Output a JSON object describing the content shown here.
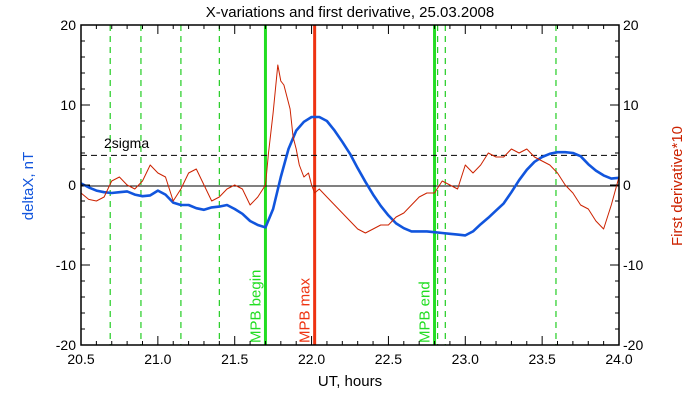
{
  "chart_data": {
    "type": "line",
    "title": "X-variations and first derivative, 25.03.2008",
    "xlabel": "UT, hours",
    "ylabel_left": "deltaX, nT",
    "ylabel_right": "First derivative*10",
    "xlim": [
      20.5,
      24.0
    ],
    "ylim": [
      -20,
      20
    ],
    "x_ticks": [
      "20.5",
      "21.0",
      "21.5",
      "22.0",
      "22.5",
      "23.0",
      "23.5",
      "24.0"
    ],
    "y_ticks_left": [
      "-20",
      "-10",
      "0",
      "10",
      "20"
    ],
    "y_ticks_right": [
      "-20",
      "-10",
      "0",
      "10",
      "20"
    ],
    "grid": false,
    "threshold": {
      "label": "2sigma",
      "value": 3.7
    },
    "colors": {
      "deltaX": "#1155dd",
      "derivative": "#cc2200",
      "mpb": "#22dd22",
      "mpb_max": "#ee3311",
      "dashed_green": "#22cc22",
      "axes": "#000000"
    },
    "dashed_markers": [
      20.69,
      20.89,
      21.15,
      21.4,
      22.82,
      22.87,
      23.59
    ],
    "event_lines": [
      {
        "label": "MPB begin",
        "x": 21.7,
        "color": "#22dd22"
      },
      {
        "label": "MPB max",
        "x": 22.02,
        "color": "#ee3311"
      },
      {
        "label": "MPB end",
        "x": 22.8,
        "color": "#22dd22"
      }
    ],
    "series": [
      {
        "name": "deltaX",
        "axis": "left",
        "color": "#1155dd",
        "x": [
          20.5,
          20.55,
          20.6,
          20.65,
          20.7,
          20.75,
          20.8,
          20.85,
          20.9,
          20.95,
          21.0,
          21.05,
          21.1,
          21.15,
          21.2,
          21.25,
          21.3,
          21.35,
          21.4,
          21.45,
          21.5,
          21.55,
          21.6,
          21.65,
          21.7,
          21.75,
          21.8,
          21.85,
          21.9,
          21.95,
          22.0,
          22.05,
          22.1,
          22.15,
          22.2,
          22.25,
          22.3,
          22.35,
          22.4,
          22.45,
          22.5,
          22.55,
          22.6,
          22.65,
          22.7,
          22.75,
          22.8,
          22.85,
          22.9,
          22.95,
          23.0,
          23.05,
          23.1,
          23.15,
          23.2,
          23.25,
          23.3,
          23.35,
          23.4,
          23.45,
          23.5,
          23.55,
          23.6,
          23.65,
          23.7,
          23.75,
          23.8,
          23.85,
          23.9,
          23.95,
          24.0
        ],
        "y": [
          0.2,
          -0.3,
          -0.7,
          -0.9,
          -1.0,
          -0.9,
          -0.8,
          -1.2,
          -1.4,
          -1.3,
          -0.7,
          -1.2,
          -2.2,
          -2.5,
          -2.5,
          -2.9,
          -3.1,
          -2.8,
          -2.7,
          -2.5,
          -3.0,
          -3.6,
          -4.5,
          -5.0,
          -5.3,
          -3.0,
          1.0,
          4.5,
          6.8,
          7.9,
          8.5,
          8.5,
          8.0,
          6.8,
          5.4,
          3.9,
          2.1,
          0.4,
          -1.2,
          -2.6,
          -3.8,
          -4.8,
          -5.4,
          -5.8,
          -5.8,
          -5.8,
          -5.9,
          -6.0,
          -6.1,
          -6.2,
          -6.3,
          -5.8,
          -4.9,
          -4.1,
          -3.2,
          -2.3,
          -0.9,
          0.6,
          1.9,
          2.9,
          3.5,
          3.9,
          4.1,
          4.1,
          4.0,
          3.6,
          2.6,
          1.8,
          1.2,
          0.8,
          0.9
        ]
      },
      {
        "name": "First derivative*10",
        "axis": "right",
        "color": "#cc2200",
        "x": [
          20.5,
          20.55,
          20.6,
          20.65,
          20.7,
          20.75,
          20.8,
          20.85,
          20.9,
          20.95,
          21.0,
          21.05,
          21.1,
          21.15,
          21.2,
          21.25,
          21.3,
          21.35,
          21.4,
          21.45,
          21.5,
          21.55,
          21.6,
          21.65,
          21.7,
          21.72,
          21.75,
          21.78,
          21.8,
          21.82,
          21.84,
          21.86,
          21.88,
          21.9,
          21.92,
          21.95,
          21.98,
          22.0,
          22.02,
          22.05,
          22.1,
          22.15,
          22.2,
          22.25,
          22.3,
          22.35,
          22.4,
          22.45,
          22.5,
          22.55,
          22.6,
          22.65,
          22.7,
          22.75,
          22.8,
          22.85,
          22.9,
          22.95,
          23.0,
          23.05,
          23.1,
          23.15,
          23.2,
          23.25,
          23.3,
          23.35,
          23.4,
          23.45,
          23.5,
          23.55,
          23.6,
          23.65,
          23.7,
          23.75,
          23.8,
          23.85,
          23.9,
          23.95,
          24.0
        ],
        "y": [
          -1.0,
          -1.8,
          -2.0,
          -1.5,
          0.5,
          1.0,
          0.0,
          -0.5,
          0.5,
          2.5,
          1.5,
          1.0,
          -2.0,
          -0.5,
          1.5,
          2.0,
          0.0,
          -2.0,
          -1.5,
          -0.5,
          0.0,
          -0.5,
          -2.5,
          -1.5,
          0.0,
          4.0,
          9.0,
          15.0,
          13.0,
          12.5,
          11.0,
          9.5,
          6.0,
          4.5,
          2.5,
          1.0,
          1.5,
          0.0,
          -1.0,
          -0.5,
          -1.5,
          -2.5,
          -3.5,
          -4.5,
          -5.5,
          -6.0,
          -5.5,
          -5.0,
          -5.0,
          -4.0,
          -3.5,
          -2.5,
          -1.5,
          -1.0,
          -1.0,
          0.5,
          0.0,
          -0.5,
          2.5,
          1.5,
          2.5,
          4.0,
          3.5,
          3.5,
          4.5,
          4.0,
          4.5,
          3.5,
          3.0,
          2.5,
          1.5,
          0.0,
          -1.0,
          -2.5,
          -3.0,
          -4.5,
          -5.5,
          -2.5,
          1.0
        ]
      }
    ]
  }
}
